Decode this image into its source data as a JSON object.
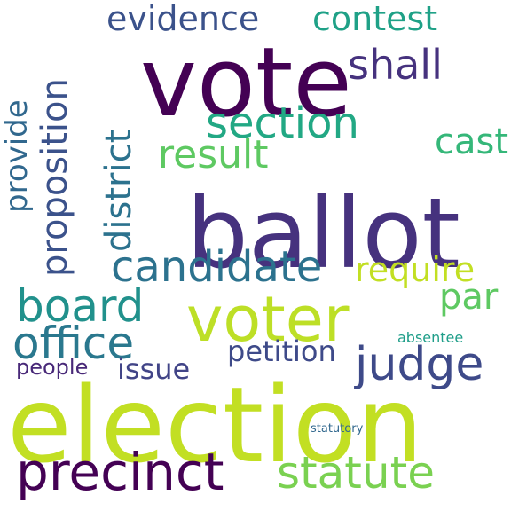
{
  "words": [
    {
      "text": "election",
      "color": "#c2df23"
    },
    {
      "text": "ballot",
      "color": "#46327e"
    },
    {
      "text": "vote",
      "color": "#440154"
    },
    {
      "text": "voter",
      "color": "#bddf26"
    },
    {
      "text": "candidate",
      "color": "#2c728e"
    },
    {
      "text": "precinct",
      "color": "#440154"
    },
    {
      "text": "section",
      "color": "#22a884"
    },
    {
      "text": "evidence",
      "color": "#3b528b"
    },
    {
      "text": "statute",
      "color": "#7ad151"
    },
    {
      "text": "contest",
      "color": "#1fa187"
    },
    {
      "text": "judge",
      "color": "#3e4a89"
    },
    {
      "text": "board",
      "color": "#21918c"
    },
    {
      "text": "office",
      "color": "#2a788e"
    },
    {
      "text": "provide",
      "color": "#31688e"
    },
    {
      "text": "proposition",
      "color": "#3b528b"
    },
    {
      "text": "district",
      "color": "#2c728e"
    },
    {
      "text": "result",
      "color": "#5ec962"
    },
    {
      "text": "require",
      "color": "#c2df23"
    },
    {
      "text": "shall",
      "color": "#46327e"
    },
    {
      "text": "cast",
      "color": "#35b779"
    },
    {
      "text": "par",
      "color": "#5ec962"
    },
    {
      "text": "petition",
      "color": "#3e4a89"
    },
    {
      "text": "issue",
      "color": "#414487"
    },
    {
      "text": "people",
      "color": "#482878"
    },
    {
      "text": "statutory",
      "color": "#31688e"
    },
    {
      "text": "absentee",
      "color": "#1f9e89"
    }
  ]
}
